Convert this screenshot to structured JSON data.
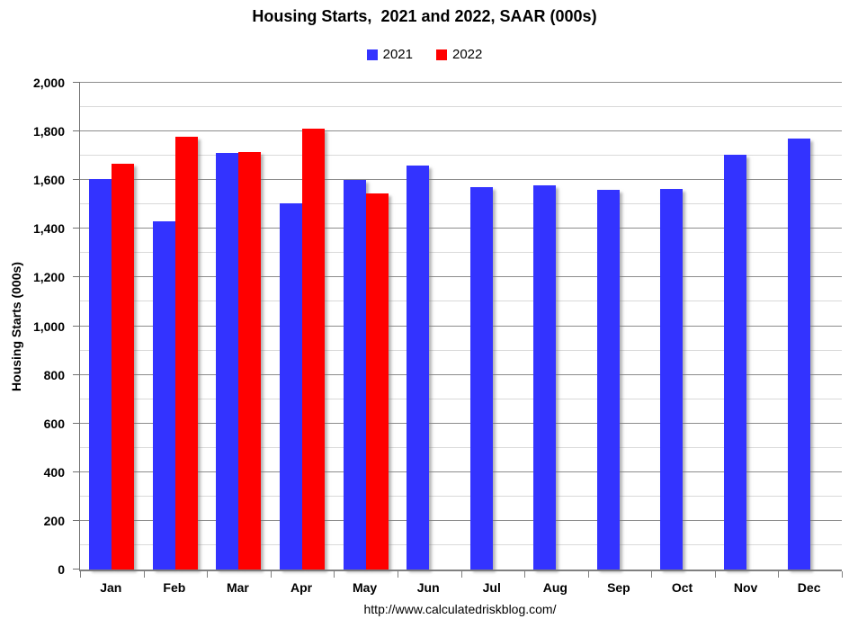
{
  "title": "Housing Starts,  2021 and 2022, SAAR (000s)",
  "legend": {
    "items": [
      {
        "label": "2021",
        "color": "#3333FF"
      },
      {
        "label": "2022",
        "color": "#FF0000"
      }
    ]
  },
  "footer_url": "http://www.calculatedriskblog.com/",
  "colors": {
    "series_2021": "#3333FF",
    "series_2022": "#FF0000",
    "grid_major": "#8c8c8c",
    "grid_minor": "#d9d9d9",
    "axis": "#808080",
    "text": "#000000"
  },
  "chart_data": {
    "type": "bar",
    "title": "Housing Starts,  2021 and 2022, SAAR (000s)",
    "xlabel": "",
    "ylabel": "Housing Starts (000s)",
    "ylim": [
      0,
      2000
    ],
    "ytick_step": 200,
    "minor_grid_step": 100,
    "grid": true,
    "legend_position": "top-center",
    "categories": [
      "Jan",
      "Feb",
      "Mar",
      "Apr",
      "May",
      "Jun",
      "Jul",
      "Aug",
      "Sep",
      "Oct",
      "Nov",
      "Dec"
    ],
    "series": [
      {
        "name": "2021",
        "color": "#3333FF",
        "values": [
          1605,
          1430,
          1712,
          1505,
          1600,
          1660,
          1573,
          1577,
          1559,
          1565,
          1706,
          1770
        ]
      },
      {
        "name": "2022",
        "color": "#FF0000",
        "values": [
          1666,
          1777,
          1716,
          1810,
          1547,
          null,
          null,
          null,
          null,
          null,
          null,
          null
        ]
      }
    ]
  }
}
